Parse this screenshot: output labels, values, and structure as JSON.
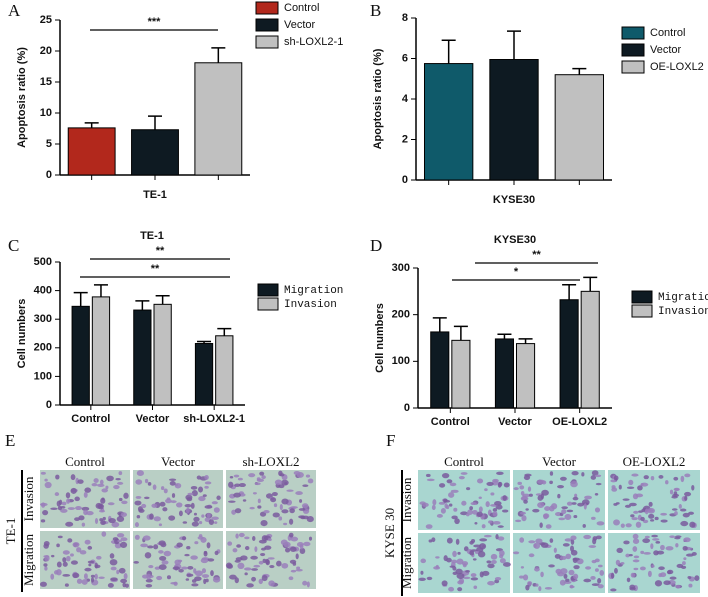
{
  "chart_data": [
    {
      "type": "bar",
      "label": "A",
      "y_label": "Apoptosis ratio (%)",
      "x_label": "TE-1",
      "categories": [
        "Control",
        "Vector",
        "sh-LOXL2-1"
      ],
      "values": [
        7.6,
        7.3,
        18.1
      ],
      "errors": [
        0.8,
        2.2,
        2.4
      ],
      "colors": [
        "#b2281c",
        "#0e1a22",
        "#c0c0c0"
      ],
      "ylim": [
        0,
        25
      ],
      "yticks": [
        0,
        5,
        10,
        15,
        20,
        25
      ],
      "annotations": [
        "***"
      ]
    },
    {
      "type": "bar",
      "label": "B",
      "y_label": "Apoptosis ratio (%)",
      "x_label": "KYSE30",
      "categories": [
        "Control",
        "Vector",
        "OE-LOXL2"
      ],
      "values": [
        5.75,
        5.95,
        5.2
      ],
      "errors": [
        1.15,
        1.4,
        0.3
      ],
      "colors": [
        "#0f5a6a",
        "#0e1a22",
        "#c0c0c0"
      ],
      "ylim": [
        0,
        8
      ],
      "yticks": [
        0,
        2,
        4,
        6,
        8
      ],
      "annotations": []
    },
    {
      "type": "grouped-bar",
      "label": "C",
      "title": "TE-1",
      "y_label": "Cell numbers",
      "categories": [
        "Control",
        "Vector",
        "sh-LOXL2-1"
      ],
      "series": [
        {
          "name": "Migration",
          "color": "#0e1a22",
          "values": [
            345,
            332,
            215
          ],
          "errors": [
            48,
            32,
            7
          ]
        },
        {
          "name": "Invasion",
          "color": "#c0c0c0",
          "values": [
            378,
            352,
            242
          ],
          "errors": [
            42,
            30,
            25
          ]
        }
      ],
      "ylim": [
        0,
        500
      ],
      "yticks": [
        0,
        100,
        200,
        300,
        400,
        500
      ],
      "annotations": [
        "**",
        "**"
      ]
    },
    {
      "type": "grouped-bar",
      "label": "D",
      "title": "KYSE30",
      "y_label": "Cell numbers",
      "categories": [
        "Control",
        "Vector",
        "OE-LOXL2"
      ],
      "series": [
        {
          "name": "Migration",
          "color": "#0e1a22",
          "values": [
            163,
            148,
            232
          ],
          "errors": [
            30,
            10,
            32
          ]
        },
        {
          "name": "Invasion",
          "color": "#c0c0c0",
          "values": [
            145,
            138,
            250
          ],
          "errors": [
            30,
            10,
            30
          ]
        }
      ],
      "ylim": [
        0,
        300
      ],
      "yticks": [
        0,
        100,
        200,
        300
      ],
      "annotations": [
        "*",
        "**"
      ]
    }
  ],
  "image_panels": [
    {
      "label": "E",
      "cell_line": "TE-1",
      "columns": [
        "Control",
        "Vector",
        "sh-LOXL2"
      ],
      "rows": [
        "Invasion",
        "Migration"
      ]
    },
    {
      "label": "F",
      "cell_line": "KYSE 30",
      "columns": [
        "Control",
        "Vector",
        "OE-LOXL2"
      ],
      "rows": [
        "Invasion",
        "Migration"
      ]
    }
  ]
}
